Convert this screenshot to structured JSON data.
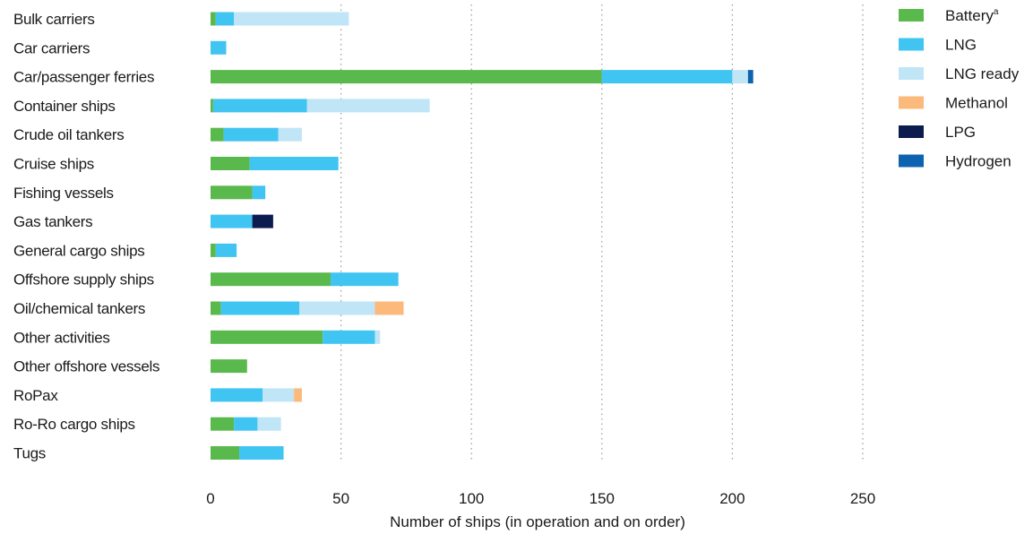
{
  "chart_data": {
    "type": "bar",
    "orientation": "horizontal",
    "stacked": true,
    "title": "",
    "xlabel": "Number of ships (in operation and on order)",
    "ylabel": "",
    "xlim": [
      0,
      250
    ],
    "xticks": [
      0,
      50,
      100,
      150,
      200,
      250
    ],
    "grid": "vertical dotted",
    "legend_position": "top-right",
    "categories": [
      "Bulk carriers",
      "Car carriers",
      "Car/passenger ferries",
      "Container ships",
      "Crude oil tankers",
      "Cruise ships",
      "Fishing vessels",
      "Gas tankers",
      "General cargo ships",
      "Offshore supply ships",
      "Oil/chemical tankers",
      "Other activities",
      "Other offshore vessels",
      "RoPax",
      "Ro-Ro cargo ships",
      "Tugs"
    ],
    "series": [
      {
        "name": "Battery",
        "superscript": "a",
        "color": "#5ab94c",
        "values": [
          2,
          0,
          150,
          1,
          5,
          15,
          16,
          0,
          2,
          46,
          4,
          43,
          14,
          0,
          9,
          11
        ]
      },
      {
        "name": "LNG",
        "color": "#40c4f2",
        "values": [
          7,
          6,
          50,
          36,
          21,
          34,
          5,
          16,
          8,
          26,
          30,
          20,
          0,
          20,
          9,
          17
        ]
      },
      {
        "name": "LNG ready",
        "color": "#bfe5f7",
        "values": [
          44,
          0,
          6,
          47,
          9,
          0,
          0,
          0,
          0,
          0,
          29,
          2,
          0,
          12,
          9,
          0
        ]
      },
      {
        "name": "Methanol",
        "color": "#fbb97c",
        "values": [
          0,
          0,
          0,
          0,
          0,
          0,
          0,
          0,
          0,
          0,
          11,
          0,
          0,
          3,
          0,
          0
        ]
      },
      {
        "name": "LPG",
        "color": "#0c1c4e",
        "values": [
          0,
          0,
          0,
          0,
          0,
          0,
          0,
          8,
          0,
          0,
          0,
          0,
          0,
          0,
          0,
          0
        ]
      },
      {
        "name": "Hydrogen",
        "color": "#0d63b0",
        "values": [
          0,
          0,
          2,
          0,
          0,
          0,
          0,
          0,
          0,
          0,
          0,
          0,
          0,
          0,
          0,
          0
        ]
      }
    ]
  }
}
